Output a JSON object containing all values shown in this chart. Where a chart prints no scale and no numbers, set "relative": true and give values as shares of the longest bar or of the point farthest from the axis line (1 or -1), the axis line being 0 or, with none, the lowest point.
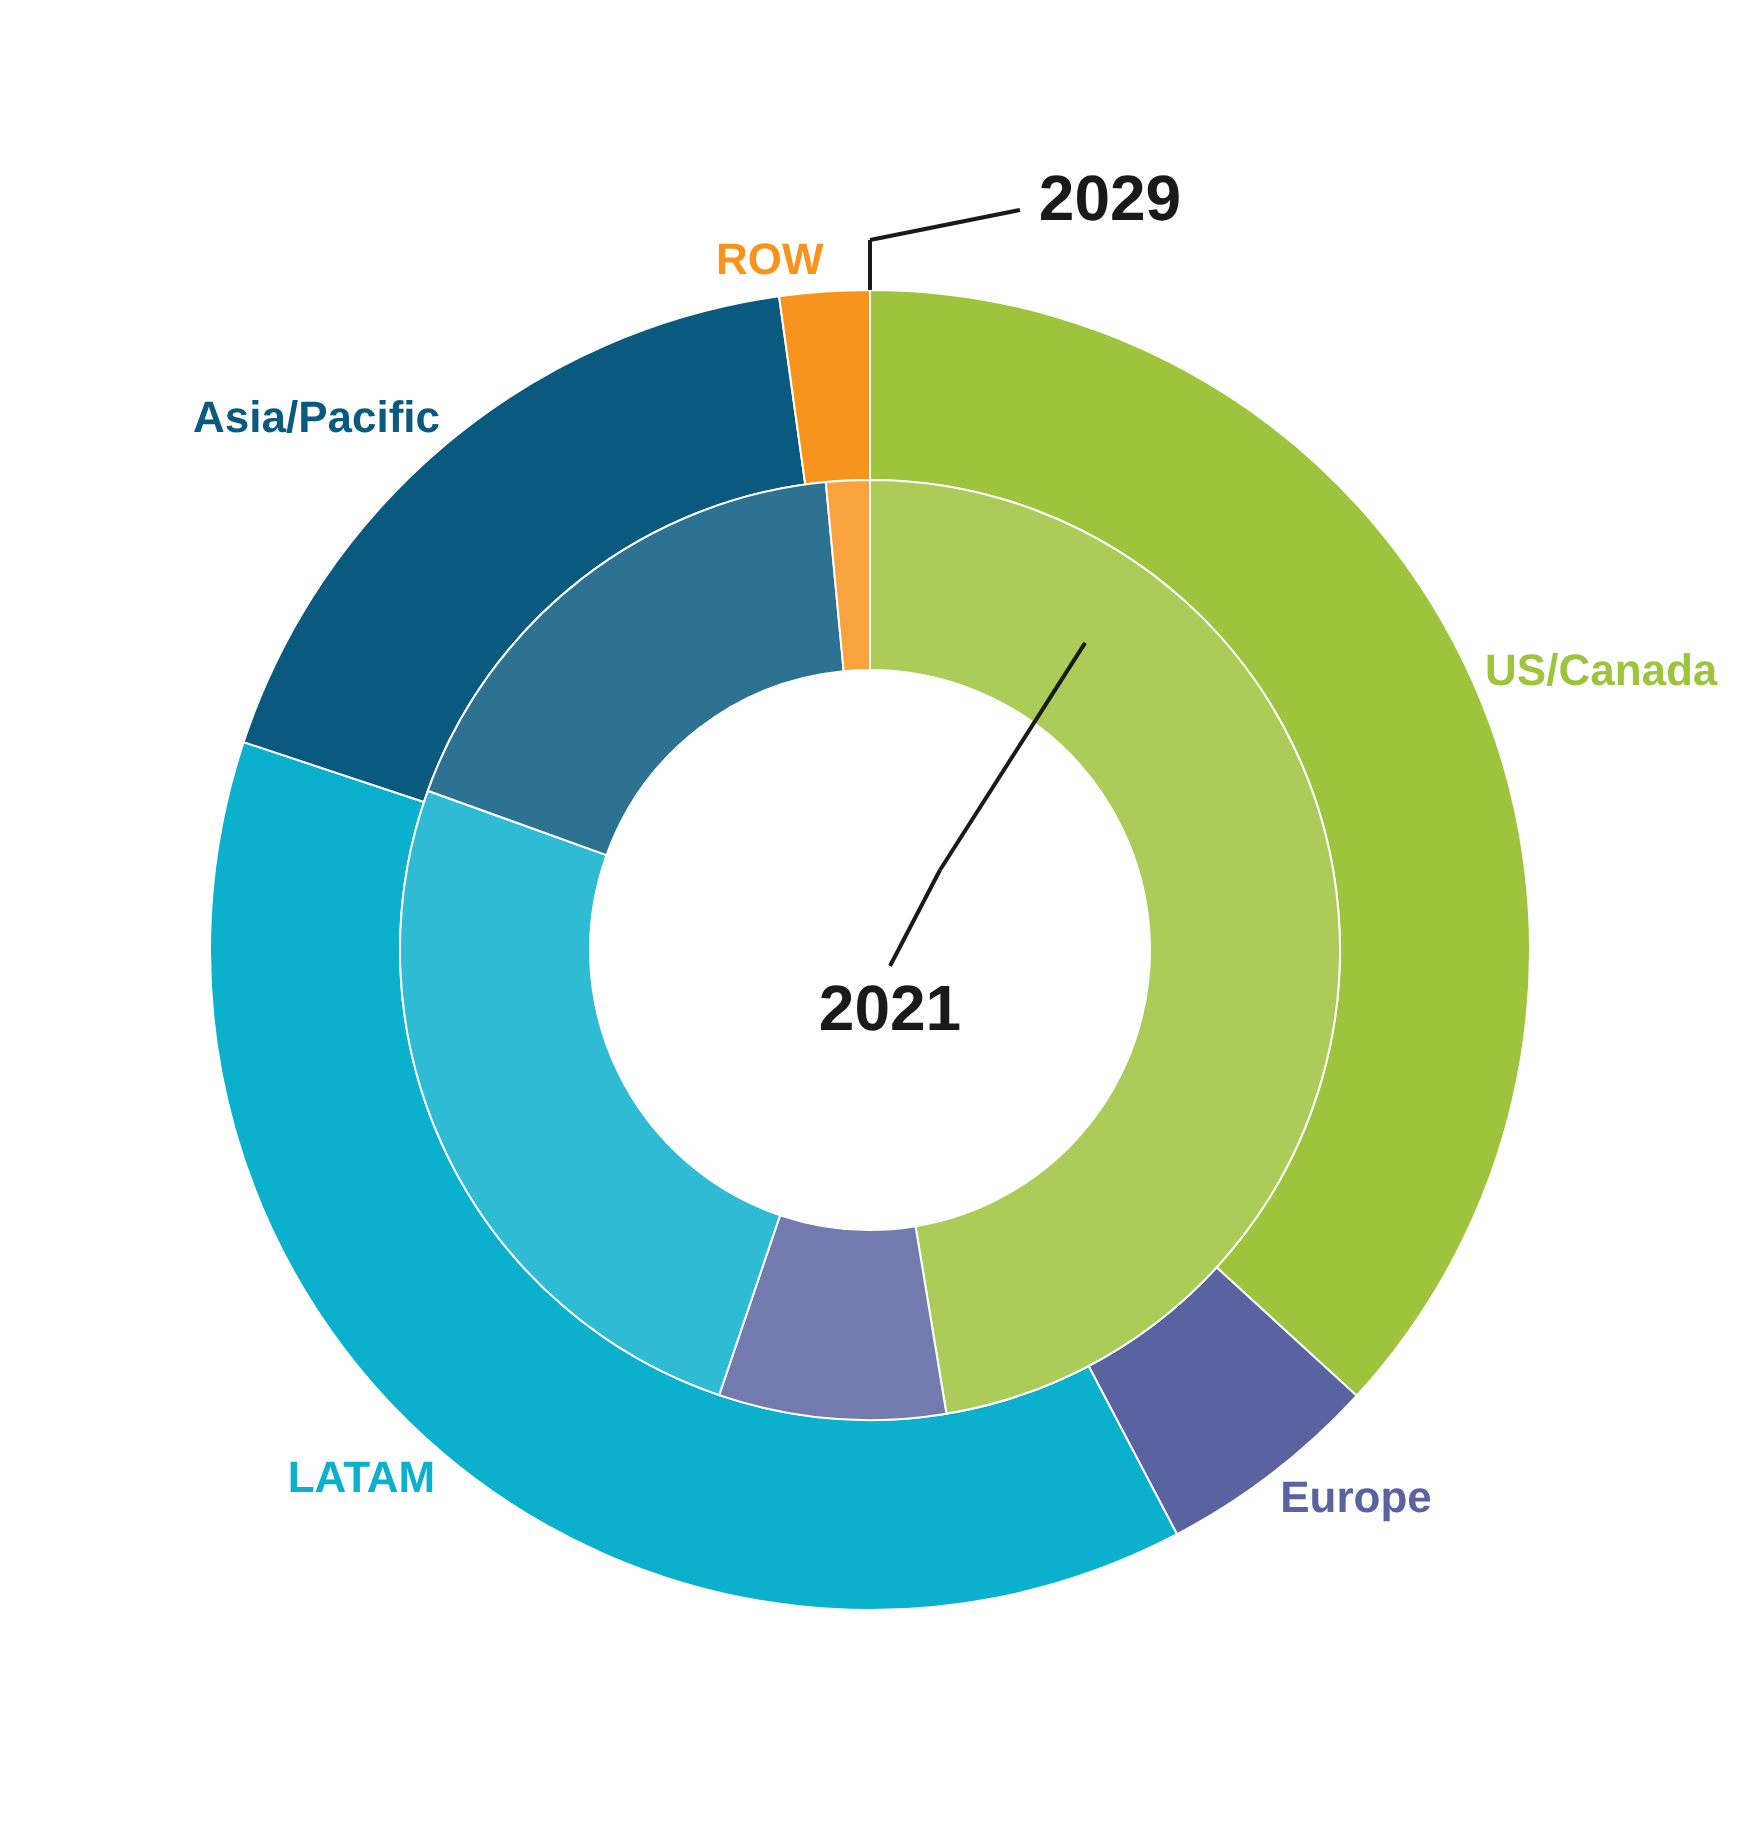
{
  "chart_data": {
    "type": "donut",
    "relative": true,
    "categories": [
      "US/Canada",
      "Europe",
      "LATAM",
      "Asia/Pacific",
      "ROW"
    ],
    "colors": [
      "#9dc43c",
      "#5a63a0",
      "#0ab0cc",
      "#0a5a80",
      "#f7941d"
    ],
    "series": [
      {
        "name": "2029",
        "values": [
          36.8,
          5.5,
          37.8,
          17.7,
          2.2
        ]
      },
      {
        "name": "2021",
        "values": [
          47.4,
          7.8,
          25.3,
          18.0,
          1.5
        ]
      }
    ]
  }
}
